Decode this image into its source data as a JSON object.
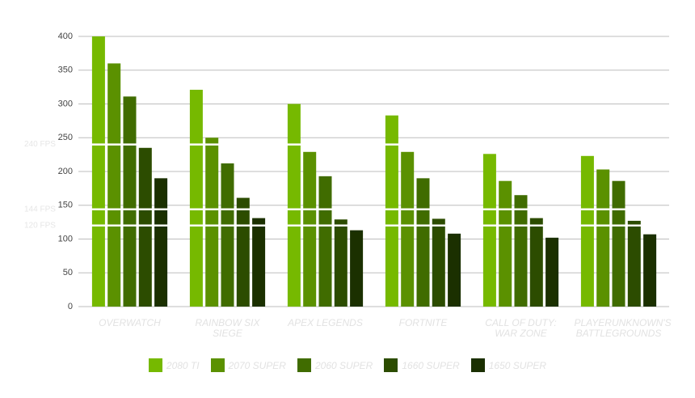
{
  "chart_data": {
    "type": "bar",
    "categories": [
      "OVERWATCH",
      "RAINBOW SIX SIEGE",
      "APEX LEGENDS",
      "FORTNITE",
      "CALL OF DUTY: WAR ZONE",
      "PLAYERUNKNOWN'S BATTLEGROUNDS"
    ],
    "series": [
      {
        "name": "2080 TI",
        "color": "#76b900",
        "values": [
          400,
          321,
          300,
          283,
          226,
          223
        ]
      },
      {
        "name": "2070 SUPER",
        "color": "#5b9100",
        "values": [
          360,
          250,
          229,
          229,
          186,
          203
        ]
      },
      {
        "name": "2060 SUPER",
        "color": "#406c00",
        "values": [
          311,
          212,
          193,
          190,
          165,
          186
        ]
      },
      {
        "name": "1660 SUPER",
        "color": "#2c4c00",
        "values": [
          235,
          161,
          129,
          130,
          131,
          127
        ]
      },
      {
        "name": "1650 SUPER",
        "color": "#1b3000",
        "values": [
          190,
          131,
          113,
          108,
          102,
          107
        ]
      }
    ],
    "ylim": [
      0,
      400
    ],
    "yticks": [
      0,
      50,
      100,
      150,
      200,
      250,
      300,
      350,
      400
    ],
    "grid": true,
    "reference_lines": [
      {
        "value": 240,
        "label": "240 FPS"
      },
      {
        "value": 144,
        "label": "144 FPS"
      },
      {
        "value": 120,
        "label": "120 FPS"
      }
    ],
    "legend": "bottom"
  }
}
